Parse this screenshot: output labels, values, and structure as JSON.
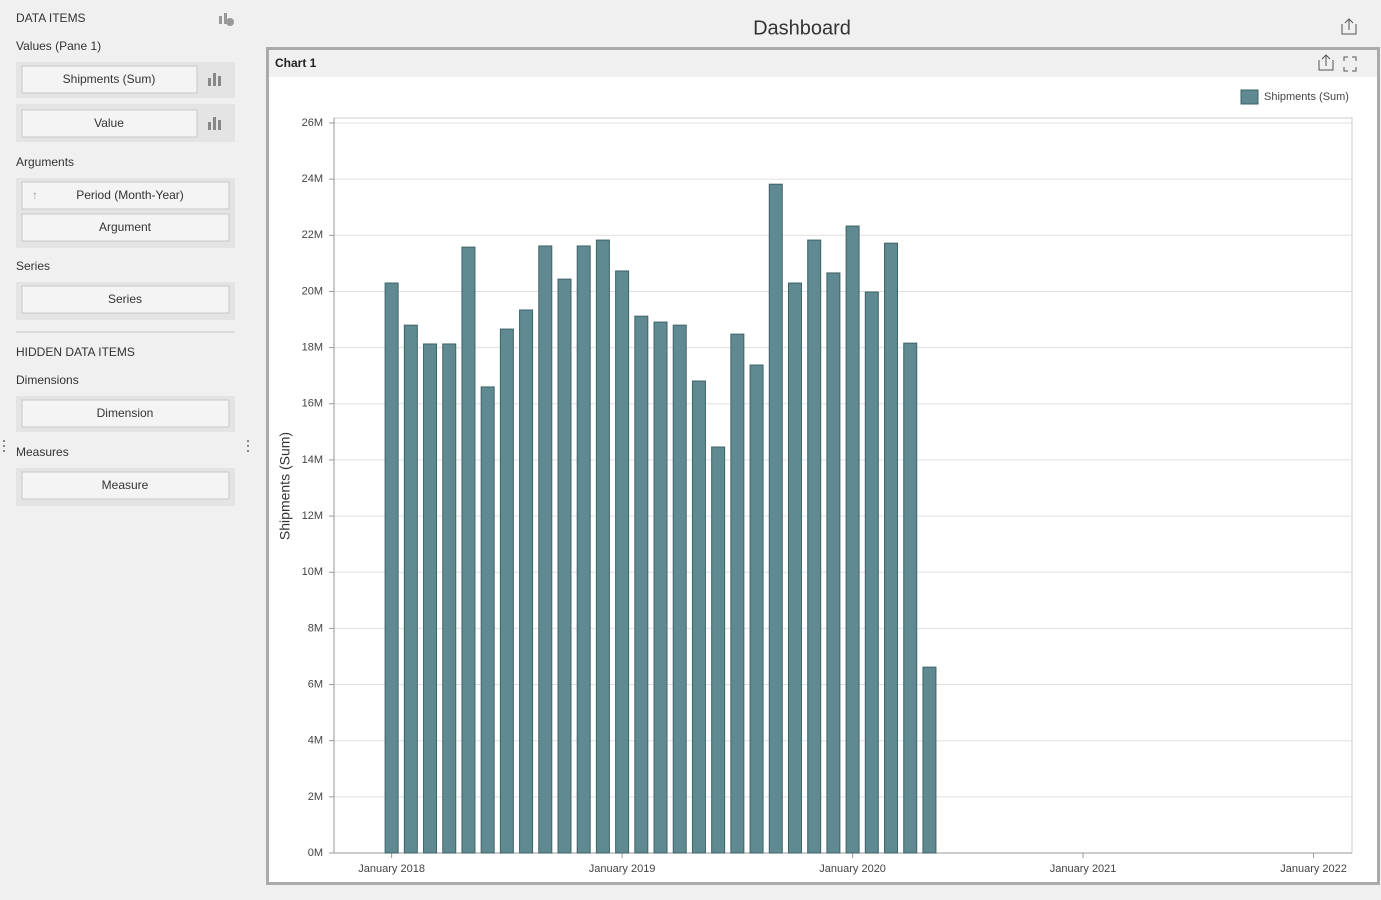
{
  "sidebar": {
    "title": "DATA ITEMS",
    "values_label": "Values (Pane 1)",
    "values_items": [
      "Shipments (Sum)",
      "Value"
    ],
    "arguments_label": "Arguments",
    "arguments_items": [
      "Period (Month-Year)",
      "Argument"
    ],
    "series_label": "Series",
    "series_items": [
      "Series"
    ],
    "hidden_title": "HIDDEN DATA ITEMS",
    "dimensions_label": "Dimensions",
    "dimensions_items": [
      "Dimension"
    ],
    "measures_label": "Measures",
    "measures_items": [
      "Measure"
    ]
  },
  "header": {
    "title": "Dashboard"
  },
  "chart_data": {
    "type": "bar",
    "panel_title": "Chart 1",
    "y_label": "Shipments (Sum)",
    "x": [
      "2018-01",
      "2018-02",
      "2018-03",
      "2018-04",
      "2018-05",
      "2018-06",
      "2018-07",
      "2018-08",
      "2018-09",
      "2018-10",
      "2018-11",
      "2018-12",
      "2019-01",
      "2019-02",
      "2019-03",
      "2019-04",
      "2019-05",
      "2019-06",
      "2019-07",
      "2019-08",
      "2019-09",
      "2019-10",
      "2019-11",
      "2019-12",
      "2020-01",
      "2020-02",
      "2020-03",
      "2020-04",
      "2020-05"
    ],
    "series": [
      {
        "name": "Shipments (Sum)",
        "color": "#5f8a91",
        "values": [
          20.3,
          18.8,
          18.13,
          18.13,
          21.58,
          16.6,
          18.66,
          19.34,
          21.62,
          20.44,
          21.62,
          21.83,
          20.73,
          19.12,
          18.91,
          18.8,
          16.81,
          14.46,
          18.48,
          17.38,
          23.82,
          20.3,
          21.83,
          20.66,
          22.33,
          19.98,
          21.72,
          18.16,
          6.62
        ]
      }
    ],
    "xlim": [
      "2017-10",
      "2022-03"
    ],
    "xticks": [
      {
        "value": "2018-01",
        "label": "January 2018"
      },
      {
        "value": "2019-01",
        "label": "January 2019"
      },
      {
        "value": "2020-01",
        "label": "January 2020"
      },
      {
        "value": "2021-01",
        "label": "January 2021"
      },
      {
        "value": "2022-01",
        "label": "January 2022"
      }
    ],
    "ylim": [
      0,
      26
    ],
    "yticks": [
      {
        "value": 0,
        "label": "0M"
      },
      {
        "value": 2,
        "label": "2M"
      },
      {
        "value": 4,
        "label": "4M"
      },
      {
        "value": 6,
        "label": "6M"
      },
      {
        "value": 8,
        "label": "8M"
      },
      {
        "value": 10,
        "label": "10M"
      },
      {
        "value": 12,
        "label": "12M"
      },
      {
        "value": 14,
        "label": "14M"
      },
      {
        "value": 16,
        "label": "16M"
      },
      {
        "value": 18,
        "label": "18M"
      },
      {
        "value": 20,
        "label": "20M"
      },
      {
        "value": 22,
        "label": "22M"
      },
      {
        "value": 24,
        "label": "24M"
      },
      {
        "value": 26,
        "label": "26M"
      }
    ],
    "grid": true,
    "legend": "top-right"
  }
}
